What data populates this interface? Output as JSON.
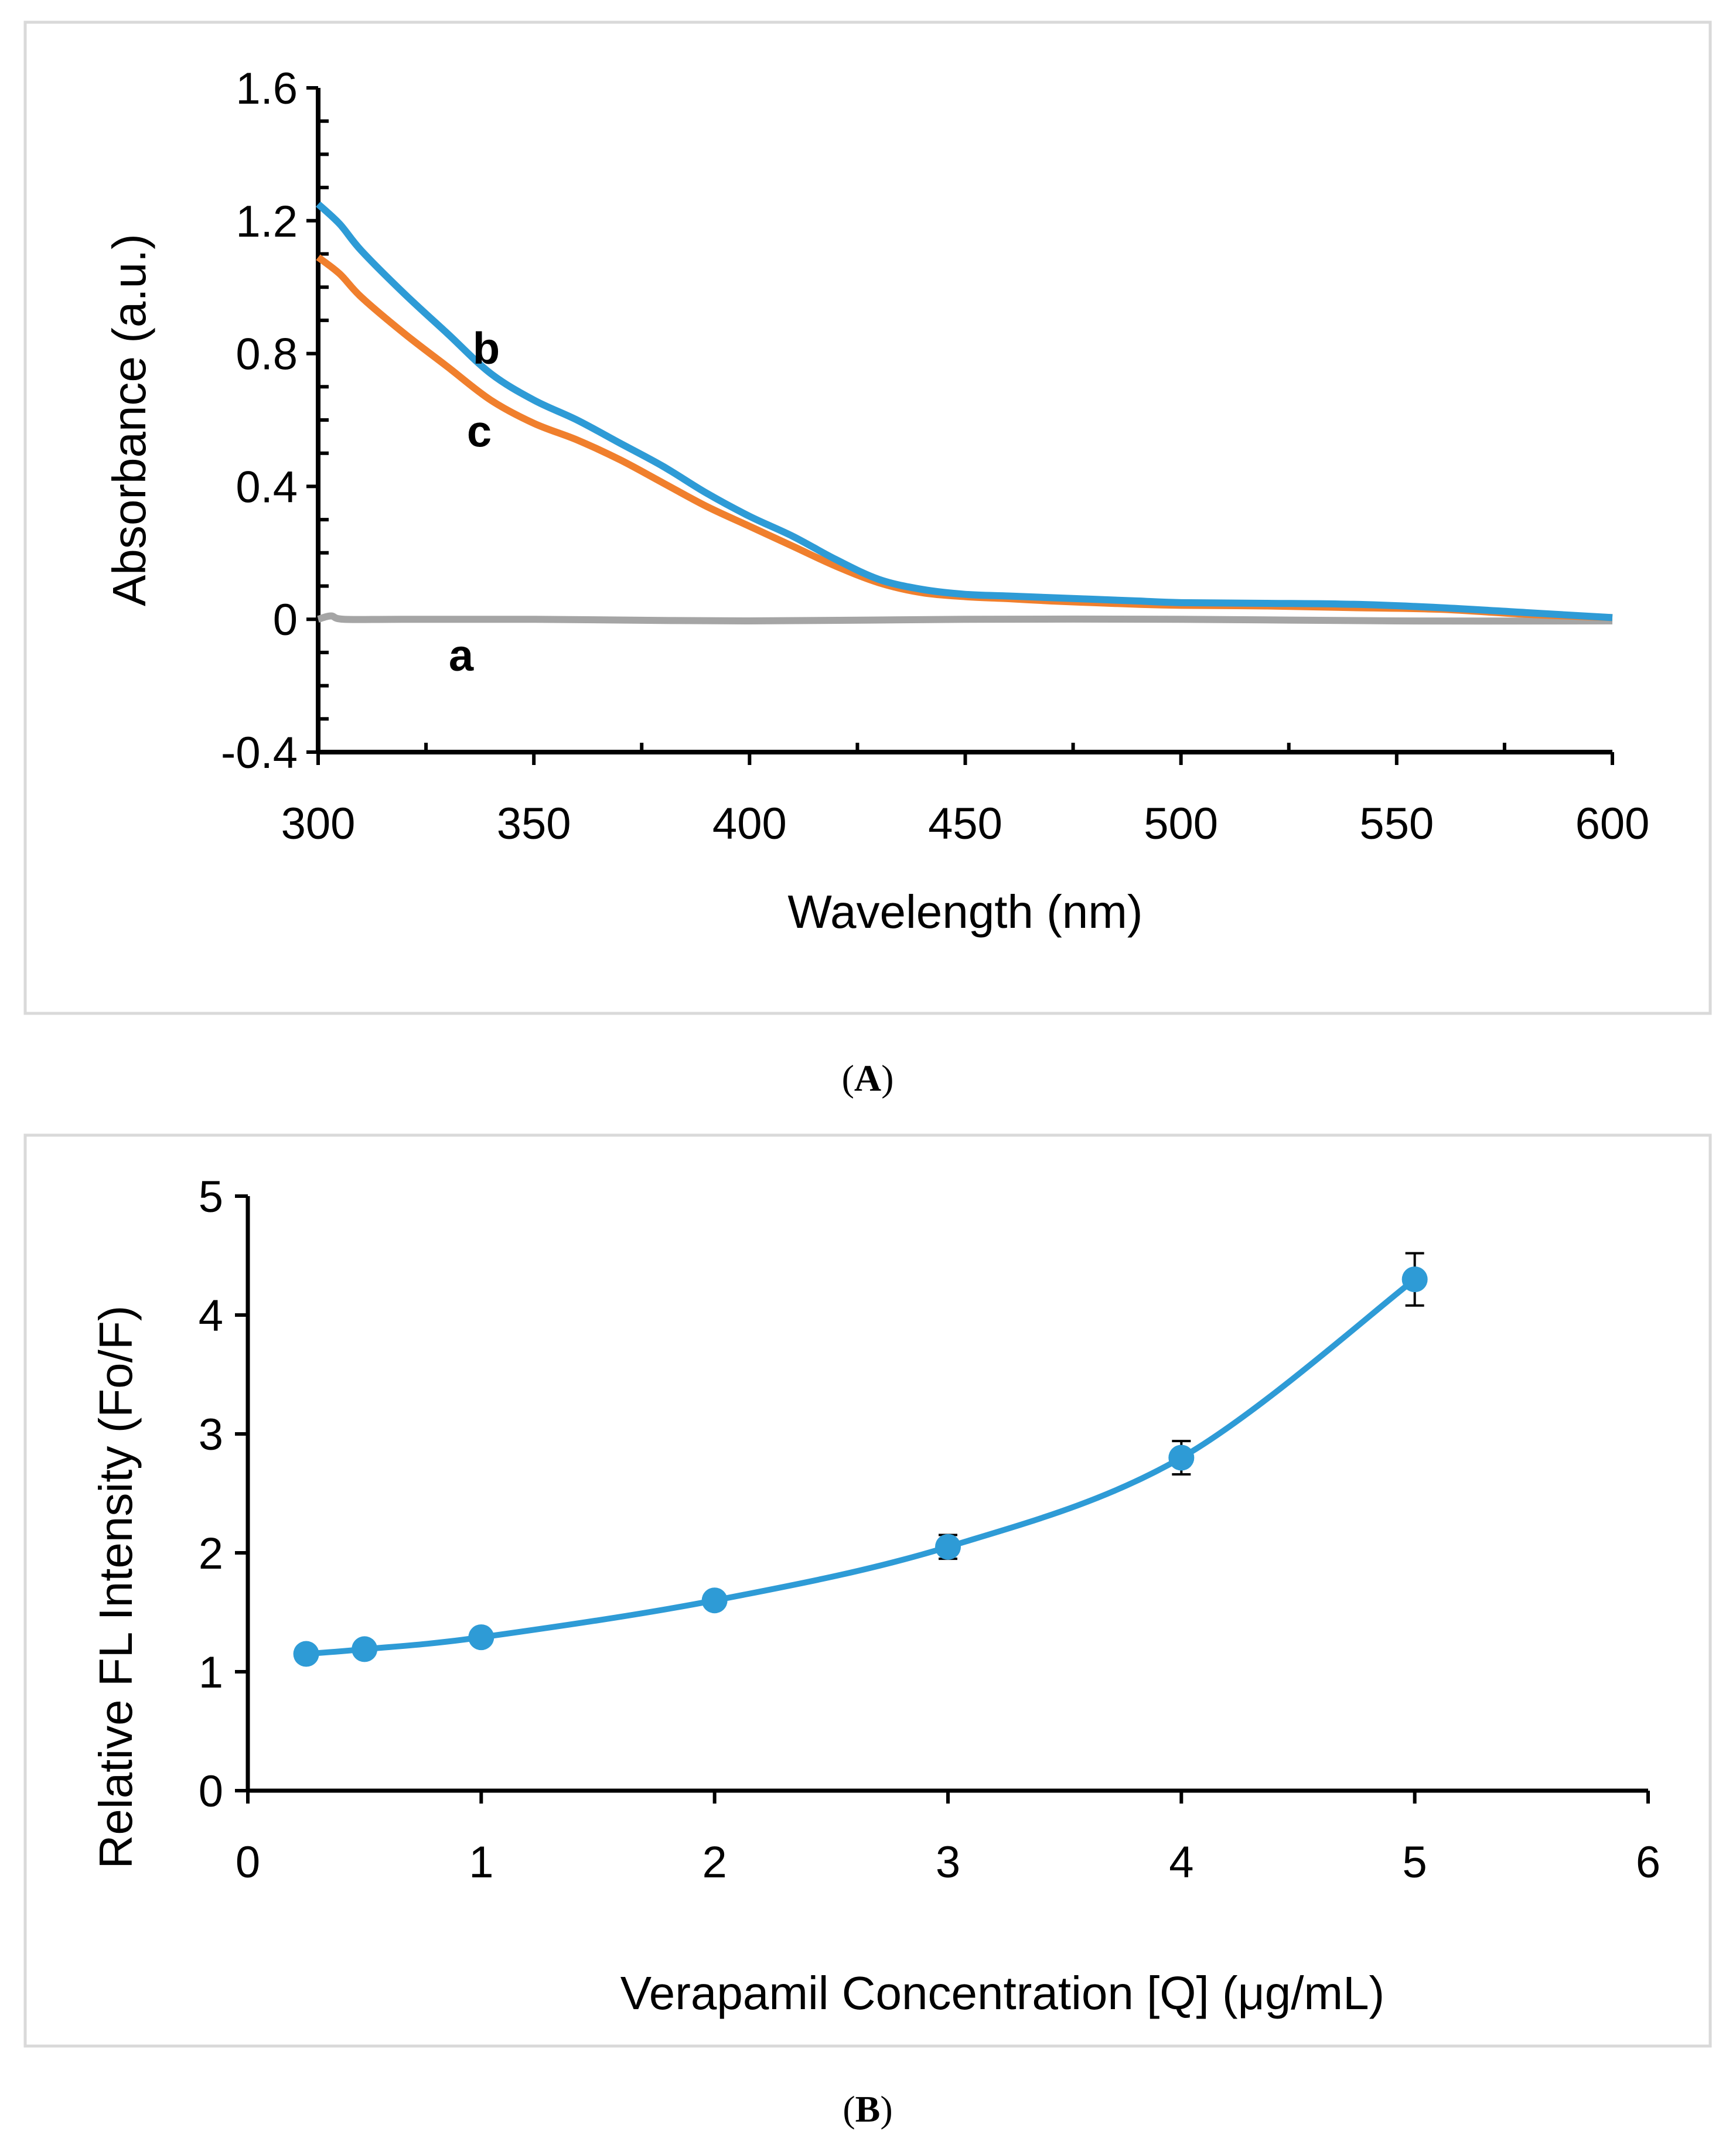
{
  "chart_data": [
    {
      "panel": "A",
      "caption_letter": "A",
      "type": "line",
      "title": "",
      "xlabel": "Wavelength (nm)",
      "ylabel": "Absorbance (a.u.)",
      "xlim": [
        300,
        600
      ],
      "ylim": [
        -0.4,
        1.6
      ],
      "xticks": [
        300,
        350,
        400,
        450,
        500,
        550,
        600
      ],
      "yticks": [
        -0.4,
        0,
        0.4,
        0.8,
        1.2,
        1.6
      ],
      "ytick_labels": [
        "-0.4",
        "0",
        "0.4",
        "0.8",
        "1.2",
        "1.6"
      ],
      "grid": false,
      "series": [
        {
          "name": "a",
          "label": "a",
          "color": "#a5a5a5",
          "x": [
            300,
            303,
            306,
            320,
            350,
            400,
            450,
            500,
            550,
            600
          ],
          "y": [
            0.0,
            0.01,
            0.0,
            0.0,
            0.0,
            -0.005,
            0.0,
            0.0,
            -0.005,
            -0.005
          ]
        },
        {
          "name": "b",
          "label": "b",
          "color": "#2e9bd6",
          "x": [
            300,
            305,
            310,
            320,
            330,
            340,
            350,
            360,
            370,
            380,
            390,
            400,
            410,
            420,
            430,
            440,
            450,
            460,
            470,
            480,
            490,
            500,
            520,
            540,
            560,
            580,
            600
          ],
          "y": [
            1.25,
            1.19,
            1.11,
            0.98,
            0.86,
            0.74,
            0.66,
            0.6,
            0.53,
            0.46,
            0.38,
            0.31,
            0.25,
            0.18,
            0.12,
            0.09,
            0.075,
            0.07,
            0.065,
            0.06,
            0.055,
            0.05,
            0.048,
            0.045,
            0.035,
            0.02,
            0.005
          ]
        },
        {
          "name": "c",
          "label": "c",
          "color": "#f07f2d",
          "x": [
            300,
            305,
            310,
            320,
            330,
            340,
            350,
            360,
            370,
            380,
            390,
            400,
            410,
            420,
            430,
            440,
            450,
            460,
            470,
            480,
            490,
            500,
            520,
            540,
            560,
            580,
            600
          ],
          "y": [
            1.09,
            1.04,
            0.97,
            0.86,
            0.76,
            0.66,
            0.59,
            0.54,
            0.48,
            0.41,
            0.34,
            0.28,
            0.22,
            0.16,
            0.11,
            0.08,
            0.068,
            0.062,
            0.055,
            0.05,
            0.045,
            0.042,
            0.04,
            0.035,
            0.03,
            0.015,
            0.005
          ]
        }
      ]
    },
    {
      "panel": "B",
      "caption_letter": "B",
      "type": "scatter",
      "title": "",
      "xlabel": "Verapamil Concentration [Q] (μg/mL)",
      "ylabel": "Relative FL Intensity (Fo/F)",
      "xlim": [
        0,
        6
      ],
      "ylim": [
        0,
        5
      ],
      "xticks": [
        0,
        1,
        2,
        3,
        4,
        5,
        6
      ],
      "yticks": [
        0,
        1,
        2,
        3,
        4,
        5
      ],
      "grid": false,
      "series": [
        {
          "name": "Relative FL Intensity",
          "color": "#2e9bd6",
          "smooth_line": true,
          "x": [
            0.25,
            0.5,
            1,
            2,
            3,
            4,
            5
          ],
          "y": [
            1.15,
            1.19,
            1.29,
            1.6,
            2.05,
            2.8,
            4.3
          ],
          "error": [
            0.03,
            0.03,
            0.04,
            0.05,
            0.1,
            0.14,
            0.22
          ]
        }
      ]
    }
  ]
}
